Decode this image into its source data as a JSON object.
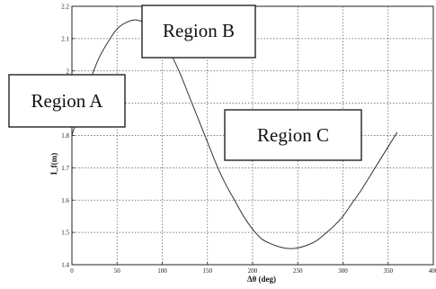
{
  "chart_data": {
    "type": "line",
    "title": "",
    "xlabel": "Δθ (deg)",
    "ylabel": "I_f(m)",
    "xlim": [
      0,
      400
    ],
    "ylim": [
      1.4,
      2.2
    ],
    "xticks": [
      "0",
      "50",
      "100",
      "150",
      "200",
      "250",
      "300",
      "350",
      "400"
    ],
    "yticks": [
      "1.4",
      "1.5",
      "1.6",
      "1.7",
      "1.8",
      "1.9",
      "2",
      "2.1",
      "2.2"
    ],
    "grid": true,
    "series": [
      {
        "x": [
          0,
          10,
          20,
          30,
          40,
          50,
          60,
          70,
          80,
          90,
          100,
          110,
          120,
          130,
          140,
          150,
          160,
          170,
          180,
          190,
          200,
          210,
          220,
          230,
          240,
          250,
          260,
          270,
          280,
          290,
          300,
          310,
          320,
          330,
          340,
          350,
          360
        ],
        "y": [
          1.8,
          1.89,
          1.97,
          2.04,
          2.09,
          2.13,
          2.15,
          2.158,
          2.15,
          2.13,
          2.1,
          2.05,
          1.99,
          1.92,
          1.85,
          1.78,
          1.71,
          1.65,
          1.6,
          1.55,
          1.51,
          1.48,
          1.465,
          1.455,
          1.45,
          1.452,
          1.46,
          1.473,
          1.495,
          1.52,
          1.55,
          1.59,
          1.63,
          1.675,
          1.72,
          1.765,
          1.81
        ],
        "color": "#333333"
      }
    ],
    "annotations": [
      {
        "label": "Region A"
      },
      {
        "label": "Region B"
      },
      {
        "label": "Region C"
      }
    ]
  }
}
